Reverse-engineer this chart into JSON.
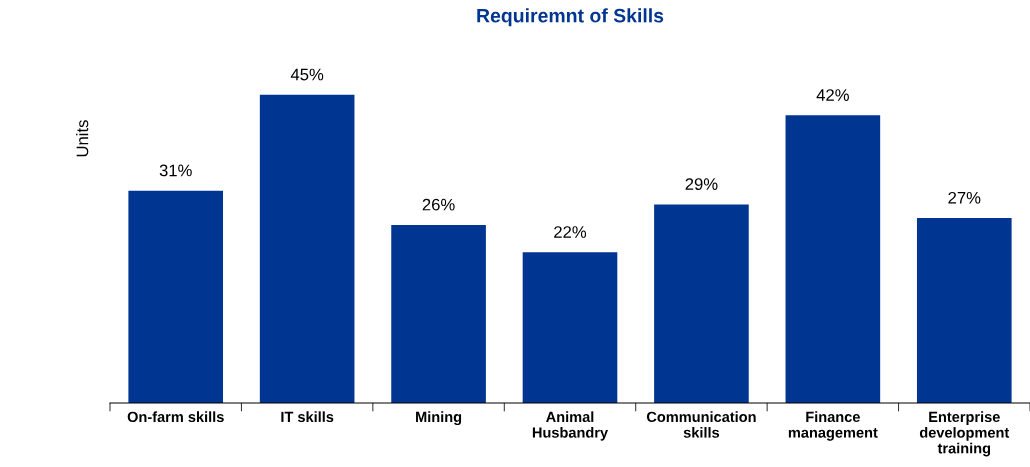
{
  "chart_data": {
    "type": "bar",
    "title": "Requiremnt of Skills",
    "ylabel": "Units",
    "categories": [
      "On-farm skills",
      "IT skills",
      "Mining",
      "Animal\nHusbandry",
      "Communication\nskills",
      "Finance\nmanagement",
      "Enterprise\ndevelopment\ntraining"
    ],
    "values": [
      31,
      45,
      26,
      22,
      29,
      42,
      27
    ],
    "value_labels": [
      "31%",
      "45%",
      "26%",
      "22%",
      "29%",
      "42%",
      "27%"
    ],
    "color": "#003591",
    "grid": false,
    "legend": false
  }
}
